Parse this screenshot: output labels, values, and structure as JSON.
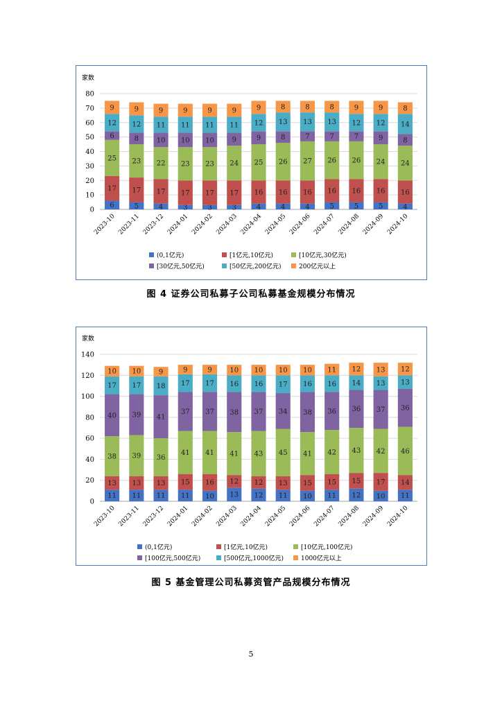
{
  "page_number": "5",
  "colors": [
    "#4472c4",
    "#c0504d",
    "#9bbb59",
    "#8064a2",
    "#4bacc6",
    "#f79646"
  ],
  "chart_data": [
    {
      "type": "bar",
      "stacked": true,
      "ylabel": "家数",
      "ylim": [
        0,
        80
      ],
      "yticks": [
        0,
        10,
        20,
        30,
        40,
        50,
        60,
        70,
        80
      ],
      "grid": true,
      "legend_position": "bottom",
      "caption": "图 4   证券公司私募子公司私募基金规模分布情况",
      "categories": [
        "2023-10",
        "2023-11",
        "2023-12",
        "2024-01",
        "2024-02",
        "2024-03",
        "2024-04",
        "2024-05",
        "2024-06",
        "2024-07",
        "2024-08",
        "2024-09",
        "2024-10"
      ],
      "series": [
        {
          "name": "(0,1亿元)",
          "values": [
            6,
            5,
            4,
            3,
            3,
            3,
            4,
            4,
            4,
            5,
            5,
            5,
            4
          ]
        },
        {
          "name": "[1亿元,10亿元)",
          "values": [
            17,
            17,
            17,
            17,
            17,
            17,
            16,
            16,
            16,
            16,
            16,
            16,
            16
          ]
        },
        {
          "name": "[10亿元,30亿元)",
          "values": [
            25,
            23,
            22,
            23,
            23,
            24,
            25,
            26,
            27,
            26,
            26,
            24,
            24
          ]
        },
        {
          "name": "[30亿元,50亿元)",
          "values": [
            6,
            8,
            10,
            10,
            10,
            9,
            9,
            8,
            7,
            7,
            7,
            9,
            8
          ]
        },
        {
          "name": "[50亿元,200亿元)",
          "values": [
            12,
            12,
            11,
            11,
            11,
            11,
            12,
            13,
            13,
            13,
            12,
            12,
            14
          ]
        },
        {
          "name": "200亿元以上",
          "values": [
            9,
            9,
            9,
            9,
            9,
            9,
            9,
            8,
            8,
            8,
            9,
            9,
            8
          ]
        }
      ]
    },
    {
      "type": "bar",
      "stacked": true,
      "ylabel": "家数",
      "ylim": [
        0,
        140
      ],
      "yticks": [
        0,
        20,
        40,
        60,
        80,
        100,
        120,
        140
      ],
      "grid": true,
      "legend_position": "bottom",
      "caption": "图 5   基金管理公司私募资管产品规模分布情况",
      "categories": [
        "2023-10",
        "2023-11",
        "2023-12",
        "2024-01",
        "2024-02",
        "2024-03",
        "2024-04",
        "2024-05",
        "2024-06",
        "2024-07",
        "2024-08",
        "2024-09",
        "2024-10"
      ],
      "series": [
        {
          "name": "(0,1亿元)",
          "values": [
            11,
            11,
            11,
            11,
            10,
            13,
            12,
            11,
            10,
            11,
            12,
            10,
            11
          ]
        },
        {
          "name": "[1亿元,10亿元)",
          "values": [
            13,
            13,
            13,
            15,
            16,
            12,
            12,
            13,
            15,
            15,
            15,
            17,
            14
          ]
        },
        {
          "name": "[10亿元,100亿元)",
          "values": [
            38,
            39,
            36,
            41,
            41,
            41,
            43,
            45,
            41,
            42,
            43,
            42,
            46
          ]
        },
        {
          "name": "[100亿元,500亿元)",
          "values": [
            40,
            39,
            41,
            37,
            37,
            38,
            37,
            34,
            38,
            36,
            36,
            37,
            36
          ]
        },
        {
          "name": "[500亿元,1000亿元)",
          "values": [
            17,
            17,
            18,
            17,
            17,
            16,
            16,
            17,
            16,
            16,
            14,
            13,
            13
          ]
        },
        {
          "name": "1000亿元以上",
          "values": [
            10,
            10,
            9,
            9,
            9,
            10,
            10,
            10,
            10,
            11,
            12,
            13,
            12
          ]
        }
      ]
    }
  ]
}
